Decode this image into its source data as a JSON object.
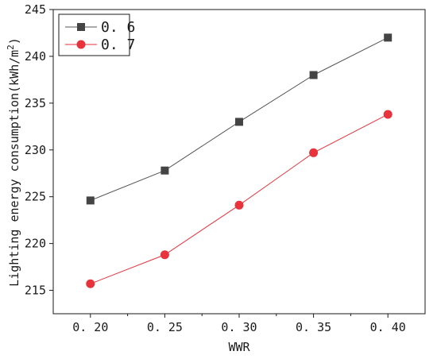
{
  "chart_data": {
    "type": "line",
    "title": "",
    "xlabel": "WWR",
    "ylabel_main": "Lighting energy consumption(kWh/m",
    "ylabel_sup": "2",
    "ylabel_end": ")",
    "x": [
      0.2,
      0.25,
      0.3,
      0.35,
      0.4
    ],
    "x_tick_labels": [
      "0. 20",
      "0. 25",
      "0. 30",
      "0. 35",
      "0. 40"
    ],
    "xlim": [
      0.175,
      0.425
    ],
    "ylim": [
      212.5,
      245
    ],
    "y_ticks": [
      215,
      220,
      225,
      230,
      235,
      240,
      245
    ],
    "y_tick_labels": [
      "215",
      "220",
      "225",
      "230",
      "235",
      "240",
      "245"
    ],
    "grid": false,
    "legend_position": "top-left",
    "series": [
      {
        "name": "0. 6",
        "marker": "square",
        "marker_color": "#444444",
        "line_color": "#555555",
        "values": [
          224.6,
          227.8,
          233.0,
          238.0,
          242.0
        ]
      },
      {
        "name": "0. 7",
        "marker": "circle",
        "marker_color": "#e8323c",
        "line_color": "#e8323c",
        "values": [
          215.7,
          218.8,
          224.1,
          229.7,
          233.8
        ]
      }
    ]
  }
}
